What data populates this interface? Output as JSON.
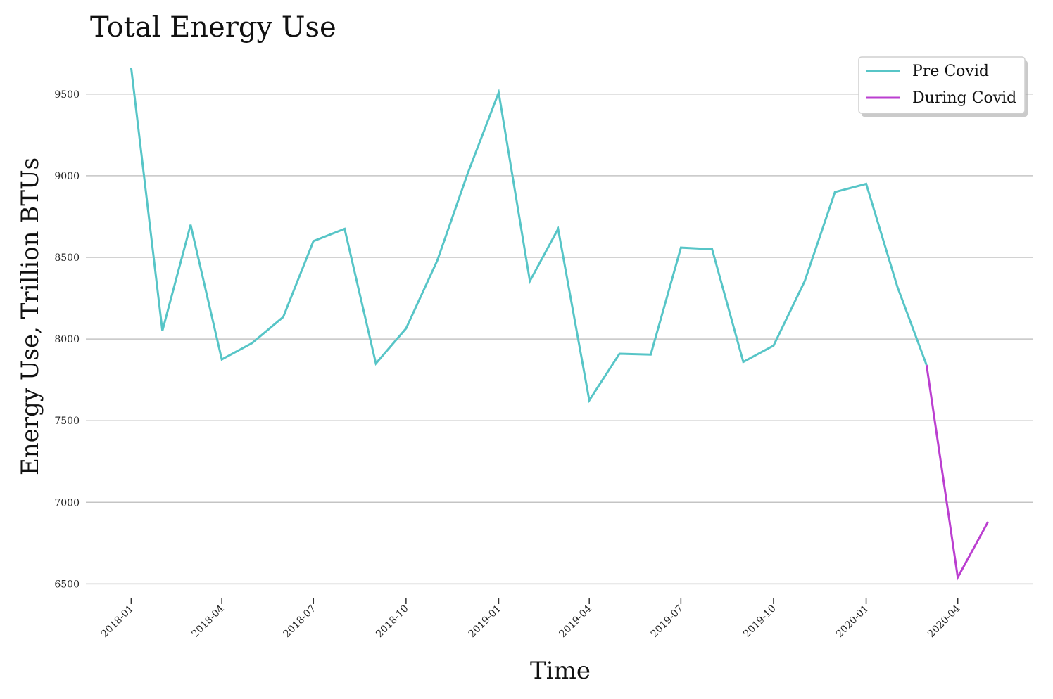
{
  "chart_data": {
    "type": "line",
    "title": "Total Energy Use",
    "xlabel": "Time",
    "ylabel": "Energy Use, Trillion BTUs",
    "ylim": [
      6450,
      9680
    ],
    "xlim": [
      "2017-11-17",
      "2020-06-15"
    ],
    "yticks": [
      6500,
      7000,
      7500,
      8000,
      8500,
      9000,
      9500
    ],
    "xticks": [
      "2018-01",
      "2018-04",
      "2018-07",
      "2018-10",
      "2019-01",
      "2019-04",
      "2019-07",
      "2019-10",
      "2020-01",
      "2020-04"
    ],
    "grid": "horizontal",
    "legend_position": "top-right",
    "series": [
      {
        "name": "Pre Covid",
        "color": "#57c5c7",
        "x": [
          "2018-01-01",
          "2018-02-01",
          "2018-03-01",
          "2018-04-01",
          "2018-05-01",
          "2018-06-01",
          "2018-07-01",
          "2018-08-01",
          "2018-09-01",
          "2018-10-01",
          "2018-11-01",
          "2018-12-01",
          "2019-01-01",
          "2019-02-01",
          "2019-03-01",
          "2019-04-01",
          "2019-05-01",
          "2019-06-01",
          "2019-07-01",
          "2019-08-01",
          "2019-09-01",
          "2019-10-01",
          "2019-11-01",
          "2019-12-01",
          "2020-01-01",
          "2020-02-01",
          "2020-03-01"
        ],
        "values": [
          9660,
          8050,
          8700,
          7875,
          7975,
          8135,
          8600,
          8675,
          7850,
          8065,
          8480,
          9010,
          9510,
          8355,
          8675,
          7625,
          7910,
          7905,
          8560,
          8550,
          7860,
          7960,
          8355,
          8900,
          8950,
          8320,
          7840
        ]
      },
      {
        "name": "During Covid",
        "color": "#bb3fd0",
        "x": [
          "2020-03-01",
          "2020-04-01",
          "2020-05-01"
        ],
        "values": [
          7840,
          6540,
          6880
        ]
      }
    ]
  }
}
